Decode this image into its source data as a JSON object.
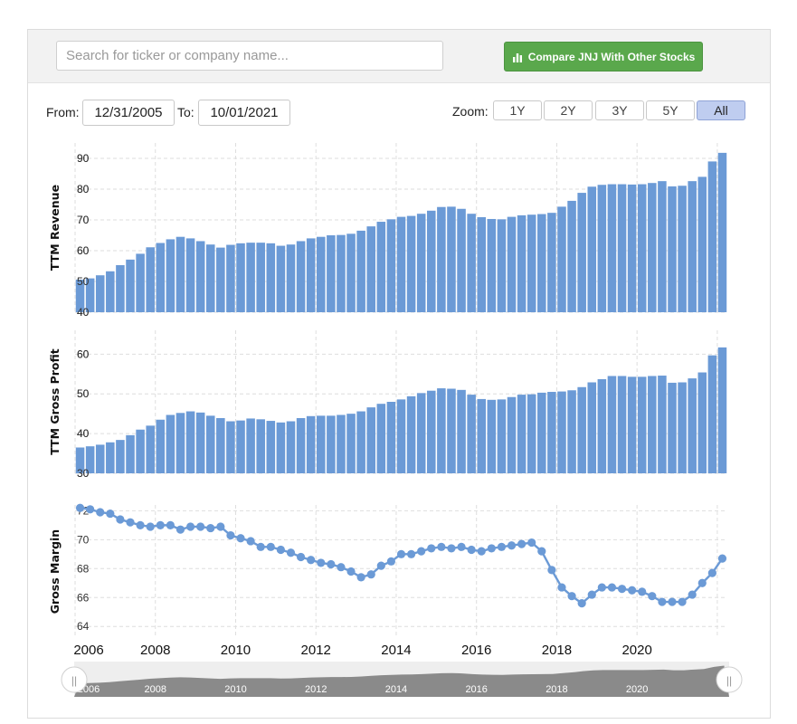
{
  "search": {
    "placeholder": "Search for ticker or company name..."
  },
  "compare_button": {
    "label": "Compare JNJ With Other Stocks",
    "color": "#5aa84c"
  },
  "range": {
    "from_label": "From:",
    "from_value": "12/31/2005",
    "to_label": "To:",
    "to_value": "10/01/2021"
  },
  "zoom": {
    "label": "Zoom:",
    "options": [
      "1Y",
      "2Y",
      "3Y",
      "5Y",
      "All"
    ],
    "active": "All"
  },
  "colors": {
    "bar": "#6b9ad6",
    "line": "#6b9ad6",
    "grid": "#dedede",
    "navigator": "#8a8a8a"
  },
  "chart_data": [
    {
      "type": "bar",
      "title": "",
      "ylabel": "TTM Revenue",
      "yticks": [
        40,
        50,
        60,
        70,
        80,
        90
      ],
      "ylim": [
        40,
        95
      ],
      "x": "quarterly, 2006 Q1 - 2021 Q3",
      "values": [
        50.6,
        51.0,
        52.0,
        53.3,
        55.3,
        57.1,
        59.0,
        61.1,
        62.5,
        63.7,
        64.5,
        64.0,
        63.1,
        62.0,
        61.0,
        61.9,
        62.4,
        62.6,
        62.6,
        62.4,
        61.6,
        62.0,
        63.1,
        64.0,
        64.5,
        65.0,
        65.1,
        65.5,
        66.5,
        67.9,
        69.4,
        70.2,
        71.0,
        71.3,
        72.0,
        73.0,
        74.2,
        74.3,
        73.6,
        72.0,
        70.9,
        70.3,
        70.2,
        71.0,
        71.5,
        71.7,
        71.9,
        72.3,
        74.3,
        76.2,
        78.8,
        80.8,
        81.4,
        81.6,
        81.6,
        81.5,
        81.6,
        82.0,
        82.6,
        80.9,
        81.1,
        82.6,
        84.0,
        89.0,
        91.8
      ]
    },
    {
      "type": "bar",
      "title": "",
      "ylabel": "TTM Gross Profit",
      "yticks": [
        30,
        40,
        50,
        60
      ],
      "ylim": [
        30,
        66
      ],
      "x": "quarterly, 2006 Q1 - 2021 Q3",
      "values": [
        36.5,
        36.8,
        37.2,
        37.8,
        38.4,
        39.6,
        41.0,
        42.0,
        43.5,
        44.7,
        45.2,
        45.6,
        45.3,
        44.5,
        43.9,
        43.1,
        43.3,
        43.8,
        43.6,
        43.2,
        42.8,
        43.1,
        43.9,
        44.4,
        44.5,
        44.5,
        44.7,
        45.0,
        45.6,
        46.6,
        47.5,
        48.0,
        48.6,
        49.4,
        50.2,
        50.8,
        51.4,
        51.3,
        51.0,
        49.8,
        48.7,
        48.5,
        48.6,
        49.2,
        49.8,
        49.9,
        50.3,
        50.5,
        50.6,
        50.9,
        51.7,
        52.9,
        53.7,
        54.5,
        54.5,
        54.3,
        54.3,
        54.5,
        54.6,
        52.8,
        52.9,
        53.9,
        55.4,
        59.7,
        61.7
      ]
    },
    {
      "type": "line",
      "title": "",
      "ylabel": "Gross Margin",
      "yticks": [
        64,
        66,
        68,
        70,
        72
      ],
      "ylim": [
        63.2,
        72.4
      ],
      "x": "quarterly, 2006 Q1 - 2021 Q3",
      "values": [
        72.2,
        72.1,
        71.9,
        71.8,
        71.4,
        71.2,
        71.0,
        70.9,
        71.0,
        71.0,
        70.7,
        70.9,
        70.9,
        70.8,
        70.9,
        70.3,
        70.1,
        69.9,
        69.5,
        69.5,
        69.3,
        69.1,
        68.8,
        68.6,
        68.4,
        68.3,
        68.1,
        67.8,
        67.4,
        67.6,
        68.2,
        68.5,
        69.0,
        69.0,
        69.2,
        69.4,
        69.5,
        69.4,
        69.5,
        69.3,
        69.2,
        69.4,
        69.5,
        69.6,
        69.7,
        69.8,
        69.2,
        67.9,
        66.7,
        66.1,
        65.6,
        66.2,
        66.7,
        66.7,
        66.6,
        66.5,
        66.4,
        66.1,
        65.7,
        65.7,
        65.7,
        66.2,
        67.0,
        67.7,
        68.7
      ]
    }
  ],
  "x_axis": {
    "ticks": [
      "2006",
      "2008",
      "2010",
      "2012",
      "2014",
      "2016",
      "2018",
      "2020"
    ]
  },
  "navigator": {
    "ticks": [
      "2006",
      "2008",
      "2010",
      "2012",
      "2014",
      "2016",
      "2018",
      "2020"
    ],
    "handle_glyph": "||"
  }
}
